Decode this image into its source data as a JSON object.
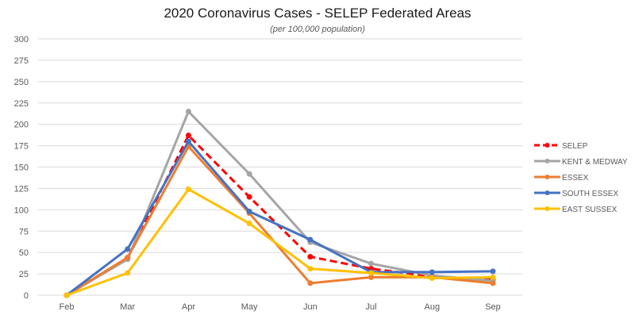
{
  "chart_data": {
    "type": "line",
    "title": "2020 Coronavirus Cases - SELEP Federated Areas",
    "subtitle": "(per 100,000 population)",
    "xlabel": "",
    "ylabel": "",
    "categories": [
      "Feb",
      "Mar",
      "Apr",
      "May",
      "Jun",
      "Jul",
      "Aug",
      "Sep"
    ],
    "ylim": [
      0,
      300
    ],
    "yticks": [
      0,
      25,
      50,
      75,
      100,
      125,
      150,
      175,
      200,
      225,
      250,
      275,
      300
    ],
    "grid": true,
    "legend_position": "right",
    "series": [
      {
        "name": "SELEP",
        "color": "#ff0000",
        "dashed": true,
        "values": [
          0,
          44,
          187,
          115,
          45,
          31,
          22,
          18
        ]
      },
      {
        "name": "KENT  & MEDWAY",
        "color": "#a5a5a5",
        "dashed": false,
        "values": [
          0,
          42,
          215,
          142,
          62,
          37,
          23,
          17
        ]
      },
      {
        "name": "ESSEX",
        "color": "#ed7d31",
        "dashed": false,
        "values": [
          0,
          44,
          174,
          96,
          14,
          21,
          21,
          14
        ]
      },
      {
        "name": "SOUTH ESSEX",
        "color": "#4472c4",
        "dashed": false,
        "values": [
          0,
          54,
          180,
          98,
          65,
          27,
          27,
          28
        ]
      },
      {
        "name": "EAST SUSSEX",
        "color": "#ffc000",
        "dashed": false,
        "values": [
          0,
          26,
          124,
          84,
          31,
          26,
          20,
          21
        ]
      }
    ]
  }
}
